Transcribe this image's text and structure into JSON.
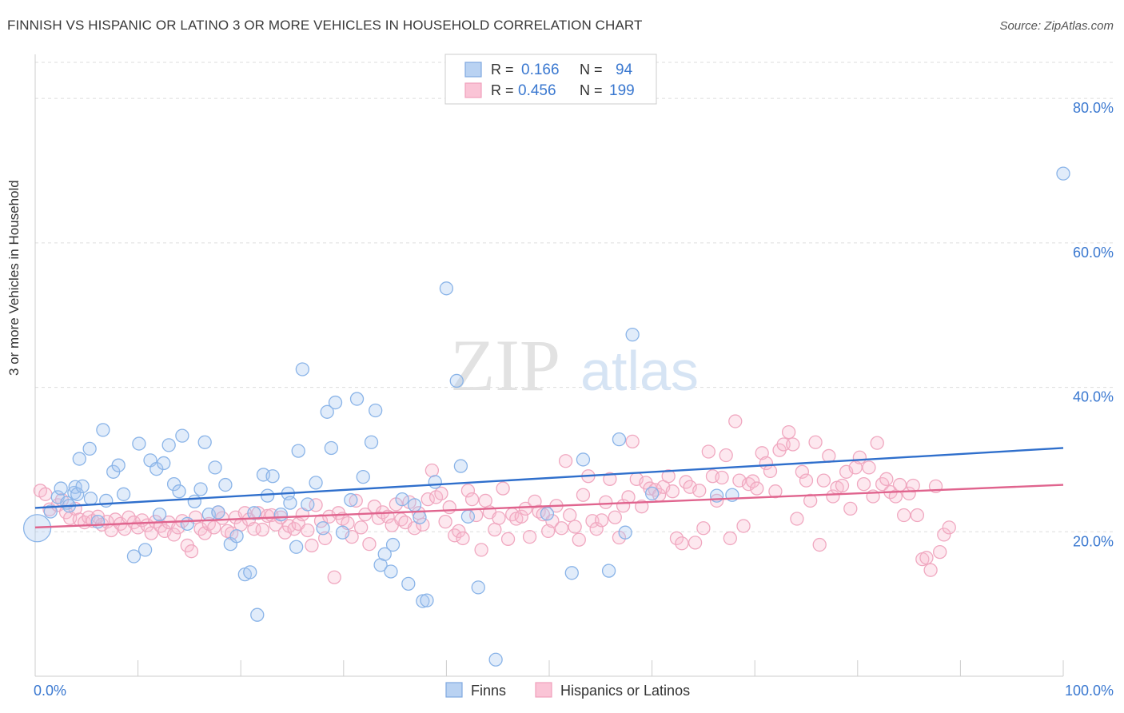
{
  "header": {
    "title": "FINNISH VS HISPANIC OR LATINO 3 OR MORE VEHICLES IN HOUSEHOLD CORRELATION CHART",
    "source": "Source: ZipAtlas.com"
  },
  "watermark": {
    "zip": "ZIP",
    "atlas": "atlas"
  },
  "colors": {
    "finns": "#8ab4e8",
    "finns_fill": "rgba(170,200,240,0.35)",
    "finns_line": "#2f6fcc",
    "hisp": "#f0a8c0",
    "hisp_fill": "rgba(248,190,210,0.35)",
    "hisp_line": "#e0648e",
    "axis_text": "#3a78d0",
    "grid": "#dddddd"
  },
  "legend_box": {
    "rows": [
      {
        "r_label": "R =",
        "r_value": "0.166",
        "n_label": "N =",
        "n_value": "94"
      },
      {
        "r_label": "R =",
        "r_value": "0.456",
        "n_label": "N =",
        "n_value": "199"
      }
    ]
  },
  "bottom_legend": {
    "finns": "Finns",
    "hisp": "Hispanics or Latinos"
  },
  "chart_data": {
    "type": "scatter",
    "title": "FINNISH VS HISPANIC OR LATINO 3 OR MORE VEHICLES IN HOUSEHOLD CORRELATION CHART",
    "ylabel": "3 or more Vehicles in Household",
    "xlabel": "",
    "xlim": [
      0,
      100
    ],
    "ylim": [
      0,
      85
    ],
    "x_tick_labels": [
      "0.0%",
      "100.0%"
    ],
    "y_tick_labels": [
      "20.0%",
      "40.0%",
      "60.0%",
      "80.0%"
    ],
    "y_ticks": [
      20,
      40,
      60,
      80
    ],
    "grid": true,
    "legend": "top-center",
    "series": [
      {
        "name": "Finns",
        "R": 0.166,
        "N": 94,
        "trend": [
          [
            0,
            23.3
          ],
          [
            100,
            31.6
          ]
        ],
        "points": [
          [
            0.2,
            20.5
          ],
          [
            1.5,
            22.8
          ],
          [
            2.2,
            24.8
          ],
          [
            2.5,
            26.0
          ],
          [
            3.1,
            24.0
          ],
          [
            3.3,
            23.6
          ],
          [
            3.8,
            25.4
          ],
          [
            3.9,
            26.2
          ],
          [
            4.1,
            25.2
          ],
          [
            4.3,
            30.1
          ],
          [
            4.6,
            26.3
          ],
          [
            5.3,
            31.5
          ],
          [
            5.4,
            24.6
          ],
          [
            6.1,
            21.4
          ],
          [
            6.6,
            34.1
          ],
          [
            6.9,
            24.3
          ],
          [
            7.6,
            28.3
          ],
          [
            8.1,
            29.2
          ],
          [
            8.6,
            25.2
          ],
          [
            9.6,
            16.6
          ],
          [
            10.1,
            32.2
          ],
          [
            10.7,
            17.5
          ],
          [
            11.2,
            29.9
          ],
          [
            11.8,
            28.7
          ],
          [
            12.1,
            22.4
          ],
          [
            12.5,
            29.5
          ],
          [
            13.0,
            32.0
          ],
          [
            13.5,
            26.6
          ],
          [
            14.0,
            25.6
          ],
          [
            14.3,
            33.3
          ],
          [
            14.8,
            21.1
          ],
          [
            15.5,
            24.2
          ],
          [
            16.1,
            25.9
          ],
          [
            16.5,
            32.4
          ],
          [
            16.9,
            22.4
          ],
          [
            17.5,
            28.9
          ],
          [
            17.8,
            22.7
          ],
          [
            18.5,
            26.5
          ],
          [
            19.0,
            18.3
          ],
          [
            19.6,
            19.4
          ],
          [
            20.4,
            14.1
          ],
          [
            20.9,
            14.4
          ],
          [
            21.3,
            22.6
          ],
          [
            21.6,
            8.5
          ],
          [
            22.2,
            27.9
          ],
          [
            22.6,
            25.0
          ],
          [
            23.1,
            27.7
          ],
          [
            23.9,
            22.4
          ],
          [
            24.6,
            25.3
          ],
          [
            24.8,
            24.0
          ],
          [
            25.4,
            17.9
          ],
          [
            25.6,
            31.2
          ],
          [
            26.0,
            42.5
          ],
          [
            26.5,
            23.8
          ],
          [
            27.3,
            26.8
          ],
          [
            28.0,
            20.5
          ],
          [
            28.4,
            36.6
          ],
          [
            28.8,
            31.6
          ],
          [
            29.2,
            37.9
          ],
          [
            29.9,
            19.9
          ],
          [
            30.7,
            24.4
          ],
          [
            31.3,
            38.4
          ],
          [
            31.9,
            27.6
          ],
          [
            32.7,
            32.4
          ],
          [
            33.1,
            36.8
          ],
          [
            33.6,
            15.4
          ],
          [
            34.0,
            16.9
          ],
          [
            34.6,
            14.5
          ],
          [
            34.8,
            18.2
          ],
          [
            35.7,
            24.5
          ],
          [
            36.3,
            12.8
          ],
          [
            36.9,
            23.7
          ],
          [
            37.4,
            22.0
          ],
          [
            37.7,
            10.4
          ],
          [
            38.1,
            10.5
          ],
          [
            38.9,
            26.9
          ],
          [
            40.0,
            53.7
          ],
          [
            41.0,
            40.9
          ],
          [
            41.4,
            29.1
          ],
          [
            42.1,
            22.1
          ],
          [
            43.1,
            12.3
          ],
          [
            44.8,
            2.3
          ],
          [
            49.8,
            22.5
          ],
          [
            52.2,
            14.3
          ],
          [
            53.3,
            30.0
          ],
          [
            55.8,
            14.6
          ],
          [
            56.8,
            32.8
          ],
          [
            57.4,
            19.9
          ],
          [
            58.1,
            47.3
          ],
          [
            60.0,
            25.3
          ],
          [
            66.3,
            25.0
          ],
          [
            67.8,
            25.1
          ],
          [
            100.0,
            69.6
          ]
        ]
      },
      {
        "name": "Hispanics or Latinos",
        "R": 0.456,
        "N": 199,
        "trend": [
          [
            0,
            20.6
          ],
          [
            100,
            26.5
          ]
        ],
        "points": [
          [
            0.5,
            25.7
          ],
          [
            1.0,
            25.2
          ],
          [
            1.4,
            23.1
          ],
          [
            2.2,
            23.7
          ],
          [
            2.6,
            24.4
          ],
          [
            3.0,
            22.7
          ],
          [
            3.4,
            21.9
          ],
          [
            3.9,
            23.2
          ],
          [
            4.3,
            21.7
          ],
          [
            4.8,
            21.3
          ],
          [
            5.2,
            22.0
          ],
          [
            5.6,
            21.5
          ],
          [
            6.1,
            22.1
          ],
          [
            6.5,
            21.0
          ],
          [
            7.0,
            21.4
          ],
          [
            7.4,
            20.2
          ],
          [
            7.8,
            21.7
          ],
          [
            8.3,
            21.1
          ],
          [
            8.7,
            20.4
          ],
          [
            9.1,
            22.0
          ],
          [
            9.6,
            21.3
          ],
          [
            10.0,
            20.6
          ],
          [
            10.4,
            21.6
          ],
          [
            10.9,
            20.9
          ],
          [
            11.3,
            19.8
          ],
          [
            11.7,
            21.4
          ],
          [
            12.2,
            20.8
          ],
          [
            12.6,
            20.1
          ],
          [
            13.0,
            21.3
          ],
          [
            13.5,
            19.6
          ],
          [
            13.9,
            20.6
          ],
          [
            14.3,
            21.5
          ],
          [
            14.8,
            18.1
          ],
          [
            15.2,
            17.3
          ],
          [
            15.6,
            22.0
          ],
          [
            16.1,
            20.4
          ],
          [
            16.5,
            19.8
          ],
          [
            16.9,
            21.1
          ],
          [
            17.4,
            20.6
          ],
          [
            17.8,
            22.7
          ],
          [
            18.2,
            21.9
          ],
          [
            18.7,
            20.1
          ],
          [
            19.1,
            19.8
          ],
          [
            19.5,
            22.0
          ],
          [
            20.0,
            21.0
          ],
          [
            20.4,
            22.6
          ],
          [
            20.8,
            21.7
          ],
          [
            21.3,
            20.4
          ],
          [
            21.7,
            22.6
          ],
          [
            22.1,
            20.3
          ],
          [
            22.6,
            22.2
          ],
          [
            23.0,
            22.3
          ],
          [
            23.4,
            21.0
          ],
          [
            23.9,
            22.0
          ],
          [
            24.3,
            19.9
          ],
          [
            24.7,
            20.8
          ],
          [
            25.2,
            20.4
          ],
          [
            25.6,
            21.1
          ],
          [
            26.0,
            22.4
          ],
          [
            26.5,
            20.2
          ],
          [
            26.9,
            18.1
          ],
          [
            27.3,
            23.7
          ],
          [
            27.8,
            21.5
          ],
          [
            28.2,
            19.1
          ],
          [
            28.6,
            22.1
          ],
          [
            29.1,
            13.7
          ],
          [
            29.5,
            22.6
          ],
          [
            29.9,
            21.8
          ],
          [
            30.4,
            21.2
          ],
          [
            30.8,
            19.3
          ],
          [
            31.2,
            24.3
          ],
          [
            31.7,
            20.6
          ],
          [
            32.1,
            22.4
          ],
          [
            32.5,
            18.3
          ],
          [
            33.0,
            23.5
          ],
          [
            33.4,
            21.9
          ],
          [
            33.8,
            22.7
          ],
          [
            34.3,
            22.1
          ],
          [
            34.7,
            20.9
          ],
          [
            35.1,
            23.8
          ],
          [
            35.6,
            21.7
          ],
          [
            36.0,
            21.3
          ],
          [
            36.4,
            24.1
          ],
          [
            36.9,
            20.5
          ],
          [
            37.3,
            22.6
          ],
          [
            37.7,
            21.0
          ],
          [
            38.2,
            24.5
          ],
          [
            38.6,
            28.5
          ],
          [
            39.0,
            24.8
          ],
          [
            39.5,
            25.3
          ],
          [
            39.9,
            21.4
          ],
          [
            40.3,
            23.4
          ],
          [
            40.8,
            19.5
          ],
          [
            41.2,
            20.1
          ],
          [
            41.6,
            19.1
          ],
          [
            42.1,
            25.7
          ],
          [
            42.5,
            24.5
          ],
          [
            42.9,
            22.3
          ],
          [
            43.4,
            17.5
          ],
          [
            43.8,
            24.3
          ],
          [
            44.2,
            22.7
          ],
          [
            44.7,
            20.3
          ],
          [
            45.1,
            21.9
          ],
          [
            45.5,
            26.0
          ],
          [
            46.0,
            19.0
          ],
          [
            46.4,
            22.4
          ],
          [
            46.8,
            21.8
          ],
          [
            47.3,
            22.1
          ],
          [
            47.7,
            23.2
          ],
          [
            48.1,
            19.3
          ],
          [
            48.6,
            24.2
          ],
          [
            49.0,
            22.8
          ],
          [
            49.4,
            22.4
          ],
          [
            49.9,
            20.1
          ],
          [
            50.3,
            21.5
          ],
          [
            50.7,
            23.6
          ],
          [
            51.2,
            20.5
          ],
          [
            51.6,
            29.8
          ],
          [
            52.0,
            22.3
          ],
          [
            52.5,
            20.7
          ],
          [
            52.9,
            18.9
          ],
          [
            53.3,
            25.1
          ],
          [
            53.8,
            27.7
          ],
          [
            54.2,
            21.5
          ],
          [
            54.6,
            20.4
          ],
          [
            55.1,
            21.6
          ],
          [
            55.5,
            24.1
          ],
          [
            55.9,
            27.3
          ],
          [
            56.4,
            22.0
          ],
          [
            56.8,
            19.2
          ],
          [
            57.2,
            23.6
          ],
          [
            57.7,
            24.8
          ],
          [
            58.1,
            32.5
          ],
          [
            58.5,
            27.3
          ],
          [
            59.0,
            23.5
          ],
          [
            59.4,
            26.8
          ],
          [
            59.8,
            26.0
          ],
          [
            60.3,
            25.8
          ],
          [
            60.7,
            25.1
          ],
          [
            61.1,
            26.2
          ],
          [
            61.6,
            27.7
          ],
          [
            62.0,
            25.6
          ],
          [
            62.4,
            19.1
          ],
          [
            62.9,
            18.4
          ],
          [
            63.3,
            26.9
          ],
          [
            63.7,
            26.2
          ],
          [
            64.2,
            18.5
          ],
          [
            64.6,
            25.7
          ],
          [
            65.0,
            20.5
          ],
          [
            65.5,
            31.1
          ],
          [
            65.9,
            27.7
          ],
          [
            66.3,
            24.3
          ],
          [
            66.8,
            27.5
          ],
          [
            67.2,
            30.6
          ],
          [
            67.6,
            19.1
          ],
          [
            68.1,
            35.3
          ],
          [
            68.5,
            27.1
          ],
          [
            68.9,
            20.8
          ],
          [
            69.4,
            26.6
          ],
          [
            69.8,
            27.0
          ],
          [
            70.2,
            26.0
          ],
          [
            70.7,
            30.9
          ],
          [
            71.1,
            29.5
          ],
          [
            71.5,
            28.4
          ],
          [
            72.0,
            25.6
          ],
          [
            72.4,
            31.3
          ],
          [
            72.8,
            32.1
          ],
          [
            73.3,
            33.8
          ],
          [
            73.7,
            32.1
          ],
          [
            74.1,
            21.8
          ],
          [
            74.6,
            28.3
          ],
          [
            75.0,
            27.1
          ],
          [
            75.4,
            24.3
          ],
          [
            75.9,
            32.4
          ],
          [
            76.3,
            18.2
          ],
          [
            76.7,
            27.1
          ],
          [
            77.2,
            30.5
          ],
          [
            77.6,
            24.9
          ],
          [
            78.0,
            26.1
          ],
          [
            78.5,
            26.4
          ],
          [
            78.9,
            28.3
          ],
          [
            79.3,
            23.2
          ],
          [
            79.8,
            28.9
          ],
          [
            80.2,
            30.3
          ],
          [
            80.6,
            26.6
          ],
          [
            81.1,
            28.9
          ],
          [
            81.5,
            24.9
          ],
          [
            81.9,
            32.3
          ],
          [
            82.4,
            26.6
          ],
          [
            82.8,
            27.3
          ],
          [
            83.2,
            25.5
          ],
          [
            83.7,
            24.9
          ],
          [
            84.1,
            26.5
          ],
          [
            84.5,
            22.3
          ],
          [
            85.0,
            25.3
          ],
          [
            85.4,
            26.4
          ],
          [
            85.8,
            22.3
          ],
          [
            86.3,
            16.2
          ],
          [
            86.7,
            16.4
          ],
          [
            87.1,
            14.7
          ],
          [
            87.6,
            26.3
          ],
          [
            88.0,
            17.2
          ],
          [
            88.4,
            19.6
          ],
          [
            88.9,
            20.6
          ]
        ]
      }
    ]
  }
}
